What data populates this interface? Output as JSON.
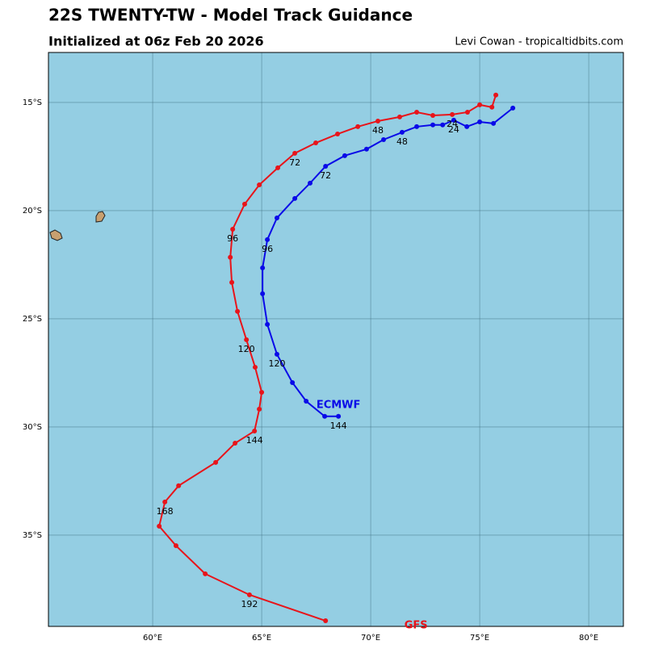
{
  "chart_data": {
    "type": "line",
    "title": "22S TWENTY-TW - Model Track Guidance",
    "subtitle": "Initialized at 06z Feb 20 2026",
    "credit": "Levi Cowan - tropicaltidbits.com",
    "xlim": [
      55.22,
      81.59
    ],
    "ylim": [
      -39.22,
      -12.69
    ],
    "xticks": [
      {
        "value": 60,
        "label": "60°E"
      },
      {
        "value": 65,
        "label": "65°E"
      },
      {
        "value": 70,
        "label": "70°E"
      },
      {
        "value": 75,
        "label": "75°E"
      },
      {
        "value": 80,
        "label": "80°E"
      }
    ],
    "yticks": [
      {
        "value": -15,
        "label": "15°S"
      },
      {
        "value": -20,
        "label": "20°S"
      },
      {
        "value": -25,
        "label": "25°S"
      },
      {
        "value": -30,
        "label": "30°S"
      },
      {
        "value": -35,
        "label": "35°S"
      }
    ],
    "grid": true,
    "series": [
      {
        "name": "GFS",
        "color": "#e8141a",
        "x": [
          75.74,
          75.56,
          75.0,
          74.44,
          73.74,
          72.85,
          72.11,
          71.33,
          70.33,
          69.41,
          68.48,
          67.48,
          66.52,
          65.74,
          64.89,
          64.22,
          63.67,
          63.56,
          63.63,
          63.89,
          64.3,
          64.7,
          65.0,
          64.89,
          64.67,
          63.78,
          62.89,
          61.19,
          60.56,
          60.3,
          61.07,
          62.41,
          64.44,
          67.93
        ],
        "values": [
          -14.66,
          -15.22,
          -15.11,
          -15.45,
          -15.56,
          -15.6,
          -15.45,
          -15.67,
          -15.86,
          -16.12,
          -16.46,
          -16.87,
          -17.35,
          -18.02,
          -18.81,
          -19.7,
          -20.86,
          -22.16,
          -23.32,
          -24.66,
          -25.97,
          -27.24,
          -28.4,
          -29.18,
          -30.19,
          -30.75,
          -31.64,
          -32.72,
          -33.47,
          -34.59,
          -35.49,
          -36.79,
          -37.76,
          -38.96
        ],
        "point_labels": [
          null,
          null,
          null,
          null,
          "24",
          null,
          null,
          null,
          "48",
          null,
          null,
          null,
          "72",
          null,
          null,
          null,
          "96",
          null,
          null,
          null,
          "120",
          null,
          null,
          null,
          "144",
          null,
          null,
          null,
          "168",
          null,
          null,
          null,
          "192",
          null
        ]
      },
      {
        "name": "ECMWF",
        "color": "#0a0ae8",
        "x": [
          76.52,
          75.63,
          75.0,
          74.41,
          73.81,
          73.3,
          72.85,
          72.11,
          71.44,
          70.59,
          69.81,
          68.81,
          67.93,
          67.22,
          66.52,
          65.7,
          65.26,
          65.04,
          65.04,
          65.26,
          65.7,
          66.41,
          67.04,
          67.89,
          68.52
        ],
        "values": [
          -15.26,
          -15.97,
          -15.9,
          -16.12,
          -15.82,
          -16.04,
          -16.04,
          -16.12,
          -16.38,
          -16.72,
          -17.16,
          -17.46,
          -17.95,
          -18.73,
          -19.44,
          -20.34,
          -21.34,
          -22.65,
          -23.84,
          -25.26,
          -26.64,
          -27.95,
          -28.81,
          -29.51,
          -29.51
        ],
        "point_labels": [
          null,
          null,
          null,
          null,
          "24",
          null,
          null,
          null,
          "48",
          null,
          null,
          null,
          "72",
          null,
          null,
          null,
          "96",
          null,
          null,
          null,
          "120",
          null,
          null,
          null,
          "144"
        ]
      }
    ]
  }
}
